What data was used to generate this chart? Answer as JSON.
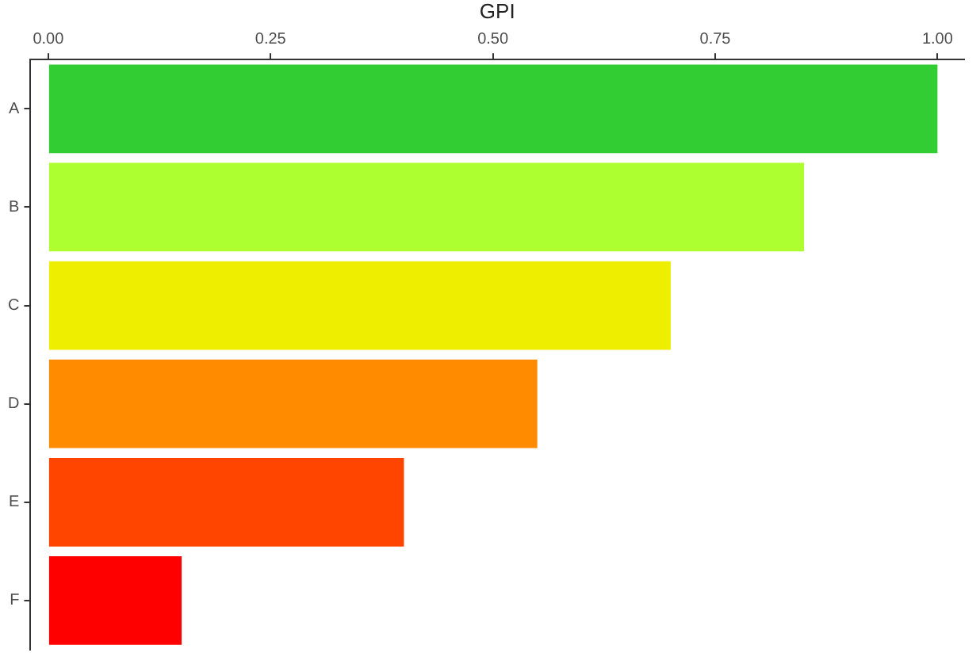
{
  "chart_data": {
    "type": "bar",
    "orientation": "horizontal",
    "xlabel": "GPI",
    "categories": [
      "A",
      "B",
      "C",
      "D",
      "E",
      "F"
    ],
    "values": [
      1.0,
      0.85,
      0.7,
      0.55,
      0.4,
      0.15
    ],
    "colors": [
      "#32cd32",
      "#adff2f",
      "#eeee00",
      "#ff8c00",
      "#ff4500",
      "#ff0000"
    ],
    "xlim": [
      -0.02,
      1.03
    ],
    "xticks": [
      {
        "value": 0,
        "label": "0.00"
      },
      {
        "value": 0.25,
        "label": "0.25"
      },
      {
        "value": 0.5,
        "label": "0.50"
      },
      {
        "value": 0.75,
        "label": "0.75"
      },
      {
        "value": 1,
        "label": "1.00"
      }
    ],
    "grid": false,
    "legend": false
  }
}
